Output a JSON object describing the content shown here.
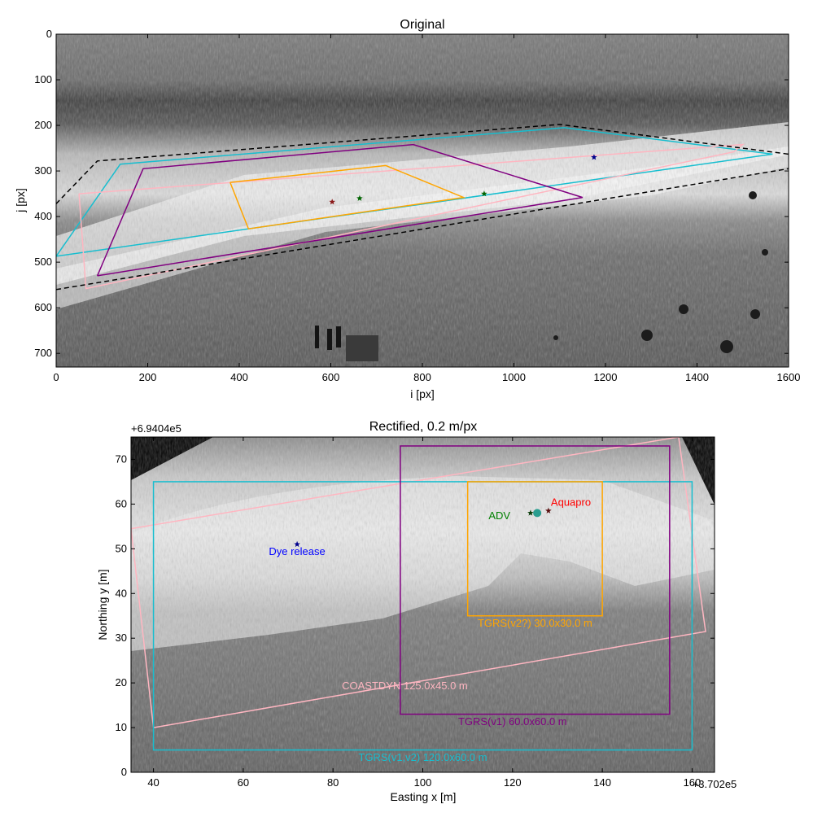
{
  "chart_data": [
    {
      "type": "image-overlay",
      "title": "Original",
      "xlabel": "i [px]",
      "ylabel": "j [px]",
      "xlim": [
        0,
        1600
      ],
      "ylim": [
        730,
        0
      ],
      "xticks": [
        0,
        200,
        400,
        600,
        800,
        1000,
        1200,
        1400,
        1600
      ],
      "yticks": [
        0,
        100,
        200,
        300,
        400,
        500,
        600,
        700
      ],
      "polygons": [
        {
          "color": "#17becf",
          "style": "solid",
          "points": [
            [
              0,
              487
            ],
            [
              140,
              285
            ],
            [
              1110,
              205
            ],
            [
              1565,
              263
            ],
            [
              0,
              487
            ]
          ]
        },
        {
          "color": "#ffb6c1",
          "style": "solid",
          "points": [
            [
              50,
              350
            ],
            [
              1500,
              242
            ],
            [
              1480,
              258
            ],
            [
              65,
              558
            ],
            [
              50,
              350
            ]
          ]
        },
        {
          "color": "#800080",
          "style": "solid",
          "points": [
            [
              90,
              530
            ],
            [
              190,
              295
            ],
            [
              780,
              242
            ],
            [
              1150,
              358
            ],
            [
              90,
              530
            ]
          ]
        },
        {
          "color": "#ffa500",
          "style": "solid",
          "points": [
            [
              380,
              325
            ],
            [
              720,
              288
            ],
            [
              890,
              358
            ],
            [
              420,
              427
            ],
            [
              380,
              325
            ]
          ]
        },
        {
          "color": "#000000",
          "style": "dashed",
          "points": [
            [
              0,
              372
            ],
            [
              90,
              278
            ],
            [
              1100,
              198
            ],
            [
              1600,
              263
            ]
          ]
        },
        {
          "color": "#000000",
          "style": "dashed",
          "points": [
            [
              0,
              560
            ],
            [
              1600,
              295
            ]
          ]
        }
      ],
      "markers": [
        {
          "color": "#8b1a1a",
          "i": 603,
          "j": 368
        },
        {
          "color": "#006400",
          "i": 663,
          "j": 360
        },
        {
          "color": "#00008b",
          "i": 1175,
          "j": 270
        },
        {
          "color": "#006400",
          "i": 935,
          "j": 350
        }
      ]
    },
    {
      "type": "image-overlay",
      "title": "Rectified, 0.2 m/px",
      "xlabel": "Easting x [m]",
      "ylabel": "Northing y [m]",
      "x_offset_label": "+3.702e5",
      "y_offset_label": "+6.9404e5",
      "xlim": [
        35,
        165
      ],
      "ylim": [
        0,
        75
      ],
      "xticks": [
        40,
        60,
        80,
        100,
        120,
        140,
        160
      ],
      "yticks": [
        0,
        10,
        20,
        30,
        40,
        50,
        60,
        70
      ],
      "rectangles": [
        {
          "label": "TGRS(v1,v2) 120.0x60.0 m",
          "color": "#17becf",
          "x0": 40,
          "y0": 5,
          "x1": 160,
          "y1": 65,
          "label_x": 100,
          "label_y": 3.5
        },
        {
          "label": "TGRS(v1) 60.0x60.0 m",
          "color": "#800080",
          "x0": 95,
          "y0": 13,
          "x1": 155,
          "y1": 73,
          "label_x": 120,
          "label_y": 11.5
        },
        {
          "label": "TGRS(v2?) 30.0x30.0 m",
          "color": "#ffa500",
          "x0": 110,
          "y0": 35,
          "x1": 140,
          "y1": 65,
          "label_x": 125,
          "label_y": 33.5
        }
      ],
      "polygon": {
        "label": "COASTDYN 125.0x45.0 m",
        "color": "#ffb6c1",
        "label_x": 96,
        "label_y": 19.5,
        "points": [
          [
            40,
            10
          ],
          [
            163,
            31.5
          ],
          [
            157,
            75
          ],
          [
            35,
            54.5
          ],
          [
            40,
            10
          ]
        ]
      },
      "points": [
        {
          "label": "Dye release",
          "color": "#0000ff",
          "x": 72,
          "y": 51,
          "label_x": 72,
          "label_y": 49.5
        },
        {
          "label": "ADV",
          "color": "#008000",
          "x": 124,
          "y": 58,
          "label_x": 119.5,
          "label_y": 57.5
        },
        {
          "label": "Aquapro",
          "color": "#ff0000",
          "x": 128,
          "y": 58.5,
          "label_x": 133,
          "label_y": 60.5
        }
      ]
    }
  ]
}
